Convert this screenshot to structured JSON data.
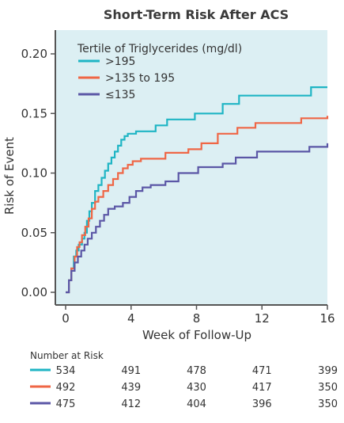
{
  "chart_data": {
    "type": "line",
    "step": true,
    "title": "Short-Term Risk After ACS",
    "xlabel": "Week of Follow-Up",
    "ylabel": "Risk of Event",
    "xlim": [
      0,
      16
    ],
    "ylim": [
      0,
      0.22
    ],
    "xticks": [
      "0",
      "4",
      "8",
      "12",
      "16"
    ],
    "yticks": [
      "0.00",
      "0.05",
      "0.10",
      "0.15",
      "0.20"
    ],
    "grid": false,
    "legend": {
      "title": "Tertile of Triglycerides (mg/dl)",
      "placement": "top-left"
    },
    "background_color": "#dceff3",
    "series": [
      {
        "name": ">195",
        "color": "#1fb5c4",
        "x": [
          0,
          0.2,
          0.35,
          0.5,
          0.65,
          0.8,
          1.0,
          1.15,
          1.3,
          1.45,
          1.6,
          1.8,
          2.0,
          2.2,
          2.4,
          2.6,
          2.8,
          3.0,
          3.2,
          3.4,
          3.6,
          3.8,
          4.0,
          4.3,
          5.5,
          6.2,
          7.9,
          9.6,
          10.6,
          15.0,
          16.0
        ],
        "y": [
          0,
          0.01,
          0.02,
          0.03,
          0.035,
          0.04,
          0.045,
          0.05,
          0.06,
          0.068,
          0.075,
          0.085,
          0.09,
          0.096,
          0.102,
          0.108,
          0.113,
          0.118,
          0.123,
          0.128,
          0.131,
          0.133,
          0.133,
          0.135,
          0.14,
          0.145,
          0.15,
          0.158,
          0.165,
          0.172,
          0.172
        ]
      },
      {
        "name": ">135 to 195",
        "color": "#ef6645",
        "x": [
          0,
          0.2,
          0.35,
          0.55,
          0.7,
          0.85,
          1.0,
          1.2,
          1.4,
          1.6,
          1.8,
          2.0,
          2.3,
          2.6,
          2.9,
          3.2,
          3.5,
          3.8,
          4.1,
          4.6,
          6.1,
          7.5,
          8.3,
          9.3,
          10.5,
          11.6,
          14.4,
          16.0
        ],
        "y": [
          0,
          0.01,
          0.02,
          0.03,
          0.038,
          0.042,
          0.048,
          0.055,
          0.062,
          0.07,
          0.076,
          0.08,
          0.085,
          0.09,
          0.095,
          0.1,
          0.104,
          0.107,
          0.11,
          0.112,
          0.117,
          0.12,
          0.125,
          0.133,
          0.138,
          0.142,
          0.146,
          0.148
        ]
      },
      {
        "name": "≤135",
        "color": "#5b57a6",
        "x": [
          0,
          0.2,
          0.35,
          0.55,
          0.75,
          0.95,
          1.15,
          1.35,
          1.6,
          1.85,
          2.1,
          2.35,
          2.6,
          3.0,
          3.5,
          3.9,
          4.3,
          4.7,
          5.2,
          6.1,
          6.9,
          8.1,
          9.6,
          10.4,
          11.7,
          14.9,
          16.0
        ],
        "y": [
          0,
          0.01,
          0.018,
          0.025,
          0.03,
          0.035,
          0.04,
          0.045,
          0.05,
          0.055,
          0.06,
          0.065,
          0.07,
          0.072,
          0.075,
          0.08,
          0.085,
          0.088,
          0.09,
          0.093,
          0.1,
          0.105,
          0.108,
          0.113,
          0.118,
          0.122,
          0.125
        ]
      }
    ]
  },
  "risk_table": {
    "title": "Number at Risk",
    "rows": [
      {
        "color": "#1fb5c4",
        "values": [
          "534",
          "491",
          "478",
          "471",
          "399"
        ]
      },
      {
        "color": "#ef6645",
        "values": [
          "492",
          "439",
          "430",
          "417",
          "350"
        ]
      },
      {
        "color": "#5b57a6",
        "values": [
          "475",
          "412",
          "404",
          "396",
          "350"
        ]
      }
    ]
  }
}
